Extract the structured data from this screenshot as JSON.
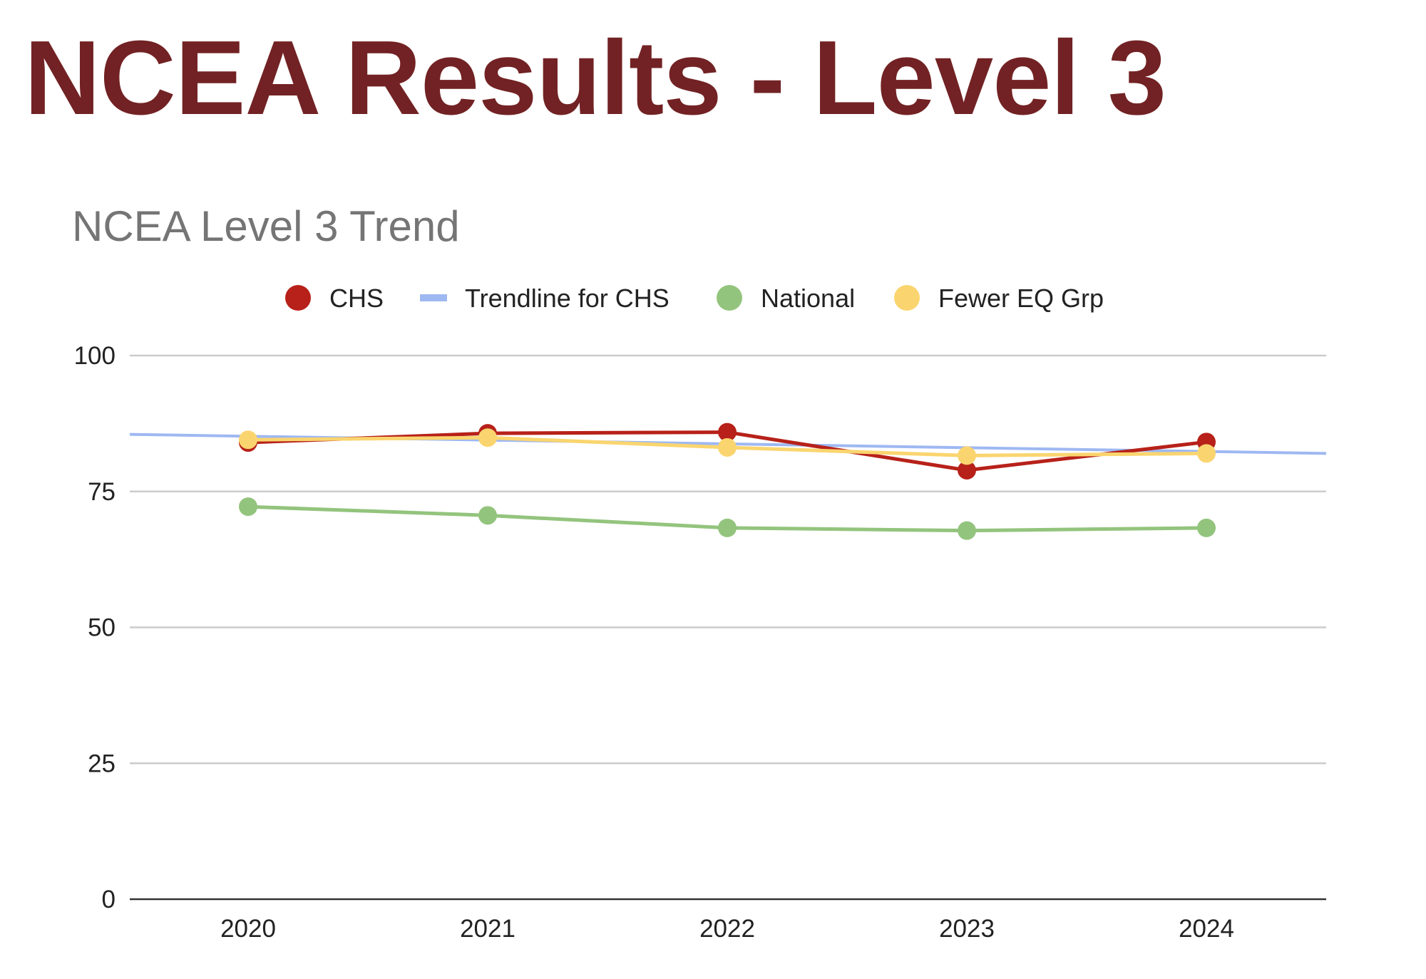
{
  "slide": {
    "title": "NCEA Results - Level 3"
  },
  "chart_data": {
    "type": "line",
    "title": "NCEA Level 3 Trend",
    "xlabel": "",
    "ylabel": "",
    "categories": [
      "2020",
      "2021",
      "2022",
      "2023",
      "2024"
    ],
    "ylim": [
      0,
      100
    ],
    "yticks": [
      0,
      25,
      50,
      75,
      100
    ],
    "grid": true,
    "legend_position": "top",
    "series": [
      {
        "name": "CHS",
        "color": "#b72119",
        "values": [
          84.0,
          85.7,
          85.9,
          78.9,
          84.1
        ],
        "marker": true
      },
      {
        "name": "Trendline for CHS",
        "color": "#9eb8f2",
        "trendline": true,
        "start": 85.5,
        "end": 82.0
      },
      {
        "name": "National",
        "color": "#93c47d",
        "values": [
          72.2,
          70.6,
          68.3,
          67.8,
          68.3
        ],
        "marker": true
      },
      {
        "name": "Fewer EQ Grp",
        "color": "#fad56f",
        "values": [
          84.5,
          84.9,
          83.1,
          81.6,
          82.0
        ],
        "marker": true
      }
    ]
  }
}
